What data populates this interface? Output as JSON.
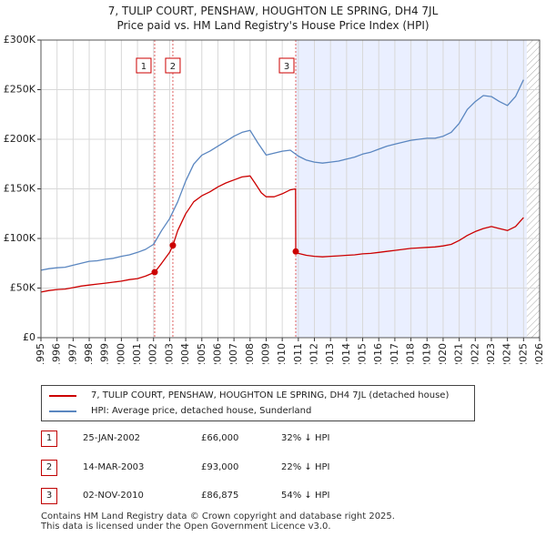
{
  "title_line1": "7, TULIP COURT, PENSHAW, HOUGHTON LE SPRING, DH4 7JL",
  "title_line2": "Price paid vs. HM Land Registry's House Price Index (HPI)",
  "colors": {
    "property": "#cc0000",
    "hpi": "#5a86c0",
    "shade": "#eaefff",
    "grid": "#d8d8d8",
    "marker_line": "#e06060"
  },
  "chart_data": {
    "type": "line",
    "title": "7, TULIP COURT, PENSHAW, HOUGHTON LE SPRING, DH4 7JL — Price paid vs. HM Land Registry's House Price Index (HPI)",
    "xlabel": "",
    "ylabel": "",
    "xlim": [
      1995,
      2026
    ],
    "ylim": [
      0,
      300000
    ],
    "y_ticks": [
      0,
      50000,
      100000,
      150000,
      200000,
      250000,
      300000
    ],
    "y_tick_labels": [
      "£0",
      "£50K",
      "£100K",
      "£150K",
      "£200K",
      "£250K",
      "£300K"
    ],
    "x_ticks": [
      1995,
      1996,
      1997,
      1998,
      1999,
      2000,
      2001,
      2002,
      2003,
      2004,
      2005,
      2006,
      2007,
      2008,
      2009,
      2010,
      2011,
      2012,
      2013,
      2014,
      2015,
      2016,
      2017,
      2018,
      2019,
      2020,
      2021,
      2022,
      2023,
      2024,
      2025,
      2026
    ],
    "x_tick_labels": [
      "1995",
      "1996",
      "1997",
      "1998",
      "1999",
      "2000",
      "2001",
      "2002",
      "2003",
      "2004",
      "2005",
      "2006",
      "2007",
      "2008",
      "2009",
      "2010",
      "2011",
      "2012",
      "2013",
      "2014",
      "2015",
      "2016",
      "2017",
      "2018",
      "2019",
      "2020",
      "2021",
      "2022",
      "2023",
      "2024",
      "2025",
      "2026"
    ],
    "grid": true,
    "shaded_region": [
      2010.84,
      2025.2
    ],
    "hatched_after": 2025.2,
    "series": [
      {
        "name": "7, TULIP COURT, PENSHAW, HOUGHTON LE SPRING, DH4 7JL (detached house)",
        "color": "#cc0000",
        "x": [
          1995.0,
          1995.5,
          1996.0,
          1996.5,
          1997.0,
          1997.5,
          1998.0,
          1998.5,
          1999.0,
          1999.5,
          2000.0,
          2000.5,
          2001.0,
          2001.5,
          2002.07,
          2002.5,
          2003.0,
          2003.2,
          2003.5,
          2004.0,
          2004.5,
          2005.0,
          2005.5,
          2006.0,
          2006.5,
          2007.0,
          2007.5,
          2008.0,
          2008.3,
          2008.7,
          2009.0,
          2009.5,
          2010.0,
          2010.5,
          2010.83,
          2010.84,
          2011.0,
          2011.5,
          2012.0,
          2012.5,
          2013.0,
          2013.5,
          2014.0,
          2014.5,
          2015.0,
          2015.5,
          2016.0,
          2016.5,
          2017.0,
          2017.5,
          2018.0,
          2018.5,
          2019.0,
          2019.5,
          2020.0,
          2020.5,
          2021.0,
          2021.5,
          2022.0,
          2022.5,
          2023.0,
          2023.5,
          2024.0,
          2024.5,
          2025.0
        ],
        "values": [
          46000,
          47500,
          48500,
          49000,
          50500,
          52000,
          53000,
          54000,
          55000,
          56000,
          57000,
          58500,
          59500,
          62000,
          66000,
          75000,
          86000,
          93000,
          108000,
          125000,
          137000,
          143000,
          147000,
          152000,
          156000,
          159000,
          162000,
          163000,
          156000,
          146000,
          142000,
          142000,
          145000,
          149000,
          150000,
          86875,
          85000,
          83000,
          82000,
          81500,
          82000,
          82500,
          83000,
          83500,
          84500,
          85000,
          86000,
          87000,
          88000,
          89000,
          90000,
          90500,
          91000,
          91500,
          92500,
          94000,
          98000,
          103000,
          107000,
          110000,
          112000,
          110000,
          108000,
          112000,
          121000
        ]
      },
      {
        "name": "HPI: Average price, detached house, Sunderland",
        "color": "#5a86c0",
        "x": [
          1995.0,
          1995.5,
          1996.0,
          1996.5,
          1997.0,
          1997.5,
          1998.0,
          1998.5,
          1999.0,
          1999.5,
          2000.0,
          2000.5,
          2001.0,
          2001.5,
          2002.0,
          2002.5,
          2003.0,
          2003.5,
          2004.0,
          2004.5,
          2005.0,
          2005.5,
          2006.0,
          2006.5,
          2007.0,
          2007.5,
          2008.0,
          2008.5,
          2009.0,
          2009.5,
          2010.0,
          2010.5,
          2011.0,
          2011.5,
          2012.0,
          2012.5,
          2013.0,
          2013.5,
          2014.0,
          2014.5,
          2015.0,
          2015.5,
          2016.0,
          2016.5,
          2017.0,
          2017.5,
          2018.0,
          2018.5,
          2019.0,
          2019.5,
          2020.0,
          2020.5,
          2021.0,
          2021.5,
          2022.0,
          2022.5,
          2023.0,
          2023.5,
          2024.0,
          2024.5,
          2025.0
        ],
        "values": [
          68000,
          69500,
          70500,
          71000,
          73000,
          75000,
          77000,
          77500,
          79000,
          80000,
          82000,
          83500,
          86000,
          89000,
          94000,
          108000,
          120000,
          137000,
          158000,
          175000,
          184000,
          188000,
          193000,
          198000,
          203000,
          207000,
          209000,
          196000,
          184000,
          186000,
          188000,
          189000,
          183000,
          179000,
          177000,
          176000,
          177000,
          178000,
          180000,
          182000,
          185000,
          187000,
          190000,
          193000,
          195000,
          197000,
          199000,
          200000,
          201000,
          201000,
          203000,
          207000,
          216000,
          230000,
          238000,
          244000,
          243000,
          238000,
          234000,
          243000,
          260000
        ]
      }
    ],
    "transactions": [
      {
        "id": "1",
        "x": 2002.07,
        "value": 66000
      },
      {
        "id": "2",
        "x": 2003.2,
        "value": 93000
      },
      {
        "id": "3",
        "x": 2010.84,
        "value": 86875
      }
    ]
  },
  "legend": {
    "property_label": "7, TULIP COURT, PENSHAW, HOUGHTON LE SPRING, DH4 7JL (detached house)",
    "hpi_label": "HPI: Average price, detached house, Sunderland"
  },
  "transactions": [
    {
      "num": "1",
      "date": "25-JAN-2002",
      "price": "£66,000",
      "hpi": "32% ↓ HPI"
    },
    {
      "num": "2",
      "date": "14-MAR-2003",
      "price": "£93,000",
      "hpi": "22% ↓ HPI"
    },
    {
      "num": "3",
      "date": "02-NOV-2010",
      "price": "£86,875",
      "hpi": "54% ↓ HPI"
    }
  ],
  "footer": {
    "line1": "Contains HM Land Registry data © Crown copyright and database right 2025.",
    "line2": "This data is licensed under the Open Government Licence v3.0."
  }
}
